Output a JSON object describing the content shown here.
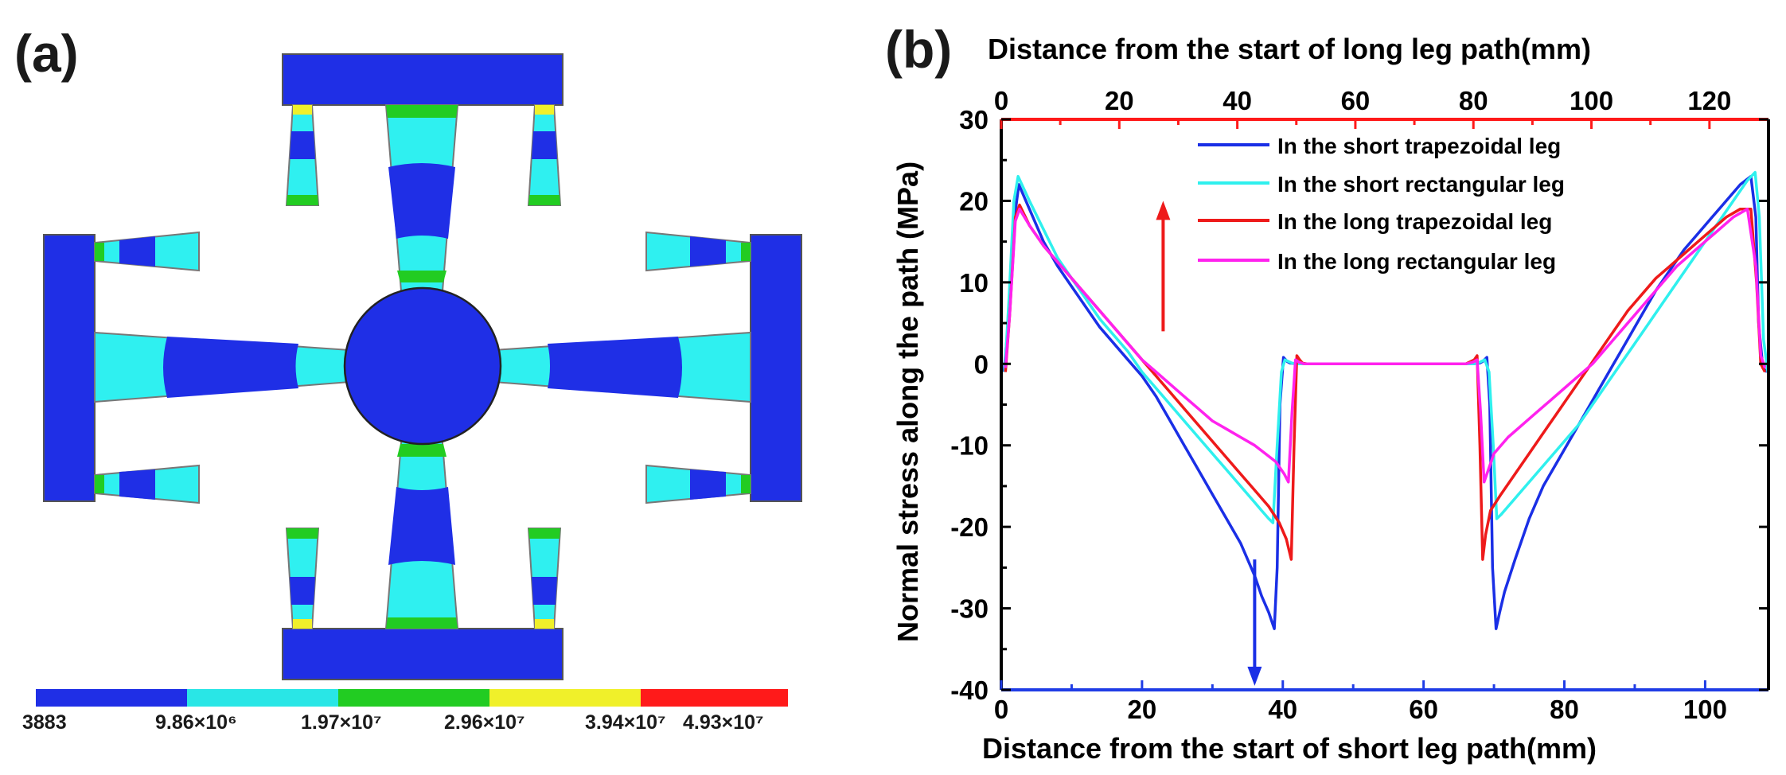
{
  "panel_a": {
    "label": "(a)",
    "colorbar": {
      "colors": [
        "#1f2fe6",
        "#29e6e6",
        "#22cc22",
        "#f0f02a",
        "#ff1a1a"
      ],
      "labels": [
        "3883",
        "9.86×10⁶",
        "1.97×10⁷",
        "2.96×10⁷",
        "3.94×10⁷",
        "4.93×10⁷"
      ]
    },
    "colors": {
      "blue": "#1f2fe6",
      "cyan": "#2ff0f0",
      "green": "#22cc22",
      "yellow": "#f0f02a",
      "gray": "#8a8a8a"
    }
  },
  "chart_data": {
    "type": "line",
    "label": "(b)",
    "xlabel": "Distance from the start of short leg path(mm)",
    "x2label": "Distance from the start of long leg path(mm)",
    "ylabel": "Normal stress along the path (MPa)",
    "xlim": [
      0,
      109
    ],
    "x2lim": [
      0,
      130
    ],
    "ylim": [
      -40,
      30
    ],
    "xticks": [
      "0",
      "20",
      "40",
      "60",
      "80",
      "100"
    ],
    "xtick_values": [
      0,
      20,
      40,
      60,
      80,
      100
    ],
    "x2ticks": [
      "0",
      "20",
      "40",
      "60",
      "80",
      "100",
      "120"
    ],
    "x2tick_values": [
      0,
      20,
      40,
      60,
      80,
      100,
      120
    ],
    "yticks": [
      "30",
      "20",
      "10",
      "0",
      "-10",
      "-20",
      "-30",
      "-40"
    ],
    "ytick_values": [
      30,
      20,
      10,
      0,
      -10,
      -20,
      -30,
      -40
    ],
    "axis_colors": {
      "bottom": "#1f3ce6",
      "top": "#ff1a1a",
      "left": "#000000",
      "right": "#000000"
    },
    "series": [
      {
        "name": "In the short trapezoidal leg",
        "color": "#1a2fe6",
        "x": [
          0.4,
          1.0,
          1.9,
          2.5,
          4,
          6,
          8,
          10,
          12,
          14,
          16,
          18,
          20,
          22,
          24,
          26,
          28,
          30,
          32,
          34,
          36,
          37,
          38,
          38.8,
          39.2,
          39.6,
          40.1,
          40.6,
          41,
          42,
          44,
          50,
          60,
          66,
          67,
          68,
          68.4,
          69,
          69.4,
          69.8,
          70.3,
          70.8,
          71.5,
          73,
          75,
          77,
          79,
          81,
          83,
          85,
          87,
          89,
          91,
          93,
          95,
          97,
          99,
          101,
          103,
          105,
          106.5,
          107.2,
          107.6,
          108.2,
          108.8
        ],
        "y": [
          -1,
          5,
          18,
          22,
          19,
          15,
          12,
          9.5,
          7,
          4.5,
          2.5,
          0.5,
          -1.5,
          -4,
          -7,
          -10,
          -13,
          -16,
          -19,
          -22,
          -26,
          -28.5,
          -30.5,
          -32.5,
          -25,
          -5,
          0.8,
          0.3,
          0.1,
          0,
          0,
          0,
          0,
          0,
          0,
          0.1,
          0.3,
          0.8,
          -5,
          -25,
          -32.5,
          -30.5,
          -28,
          -24,
          -19,
          -15,
          -12,
          -9,
          -6,
          -3,
          0,
          3,
          6,
          9,
          11.5,
          14,
          16,
          18,
          20,
          22,
          23,
          18,
          5,
          -0.5,
          -1
        ]
      },
      {
        "name": "In the short rectangular leg",
        "color": "#2ff0ee",
        "x": [
          0.5,
          1.1,
          1.8,
          2.4,
          4,
          6,
          8,
          10,
          12,
          14,
          16,
          18,
          20,
          22,
          24,
          26,
          28,
          30,
          32,
          34,
          36,
          37,
          38,
          38.6,
          39.2,
          39.8,
          40.3,
          40.8,
          41.3,
          42,
          44,
          50,
          60,
          66,
          67,
          67.7,
          68.2,
          68.7,
          69.3,
          69.9,
          70.4,
          71,
          72,
          74,
          76,
          78,
          80,
          82,
          84,
          86,
          88,
          90,
          92,
          94,
          96,
          98,
          100,
          102,
          104,
          106,
          107.1,
          107.7,
          108.3,
          108.9
        ],
        "y": [
          -1,
          8,
          20,
          23,
          20,
          16.5,
          13,
          10.5,
          8,
          5.5,
          3.5,
          1.5,
          -1,
          -3,
          -5,
          -7,
          -9,
          -11,
          -13,
          -15,
          -17,
          -18,
          -19,
          -19.5,
          -10,
          -1,
          0.5,
          0.3,
          0.1,
          0,
          0,
          0,
          0,
          0,
          0,
          0.1,
          0.3,
          0.5,
          -1,
          -10,
          -19,
          -18.5,
          -17.5,
          -15.5,
          -13.5,
          -11.5,
          -9.5,
          -7.5,
          -5,
          -2.5,
          0,
          2.5,
          5,
          7.5,
          10,
          12.5,
          15,
          17.5,
          20,
          22.5,
          23.5,
          18,
          3,
          -1
        ]
      },
      {
        "name": "In the long trapezoidal leg",
        "color": "#ee1a1a",
        "x": [
          0.6,
          1.2,
          2.0,
          2.6,
          4,
          6,
          8,
          10,
          12,
          14,
          16,
          18,
          20,
          22,
          24,
          26,
          28,
          30,
          32,
          34,
          36,
          38,
          39.5,
          40.5,
          41.2,
          41.6,
          42.0,
          42.4,
          42.8,
          43.5,
          45,
          50,
          60,
          66,
          67.2,
          67.6,
          68.0,
          68.4,
          68.8,
          69.5,
          71,
          73,
          75,
          77,
          79,
          81,
          83,
          85,
          87,
          89,
          91,
          93,
          95,
          97,
          99,
          101,
          103,
          105,
          106.5,
          107.3,
          107.9,
          108.5
        ],
        "y": [
          -1,
          6,
          18,
          19.5,
          17,
          14.5,
          12.5,
          10.5,
          8.5,
          6.5,
          4.5,
          2.5,
          0.5,
          -1.5,
          -3.5,
          -5.5,
          -7.5,
          -9.5,
          -11.5,
          -13.5,
          -15.5,
          -17.5,
          -19.5,
          -21.5,
          -24,
          -10,
          1,
          0.5,
          0.1,
          0,
          0,
          0,
          0,
          0,
          0.5,
          1,
          -10,
          -24,
          -21,
          -18,
          -16,
          -13.5,
          -11,
          -8.5,
          -6,
          -3.5,
          -1,
          1.5,
          4,
          6.5,
          8.5,
          10.5,
          12,
          13.5,
          15,
          16.5,
          18,
          19,
          19,
          10,
          0,
          -1
        ]
      },
      {
        "name": "In the long rectangular leg",
        "color": "#ff22ee",
        "x": [
          0.6,
          1.2,
          2.0,
          2.6,
          4,
          6,
          8,
          10,
          12,
          14,
          16,
          18,
          20,
          22,
          24,
          26,
          28,
          30,
          32,
          34,
          36,
          37.5,
          39,
          40.2,
          40.8,
          41.3,
          41.8,
          42.3,
          43,
          45,
          50,
          60,
          66,
          67.0,
          67.6,
          68.1,
          68.6,
          69.2,
          70,
          72,
          74,
          76,
          78,
          80,
          82,
          84,
          86,
          88,
          90,
          92,
          94,
          96,
          98,
          100,
          102,
          104,
          106,
          107.2,
          107.9,
          108.5
        ],
        "y": [
          -0.5,
          6,
          17.5,
          19,
          17,
          14.5,
          12.5,
          10.5,
          8.5,
          6.5,
          4.5,
          2.5,
          0.5,
          -1,
          -2.5,
          -4,
          -5.5,
          -7,
          -8,
          -9,
          -10,
          -11,
          -12,
          -13.5,
          -14.5,
          -6,
          0.5,
          0.2,
          0,
          0,
          0,
          0,
          0,
          0.2,
          0.5,
          -6,
          -14.5,
          -13,
          -11,
          -9,
          -7.5,
          -6,
          -4.5,
          -3,
          -1.5,
          0,
          2,
          4,
          6,
          8,
          10,
          12,
          13.5,
          15,
          16.5,
          18,
          19,
          12,
          1,
          -0.5
        ]
      }
    ],
    "annotations": [
      {
        "type": "arrow",
        "color": "#ee1a1a",
        "x": 23,
        "y_from": 4,
        "y_to": 20,
        "direction": "up"
      },
      {
        "type": "arrow",
        "color": "#1a2fe6",
        "x": 36,
        "y_from": -24,
        "y_to": -39.5,
        "direction": "down"
      }
    ]
  }
}
